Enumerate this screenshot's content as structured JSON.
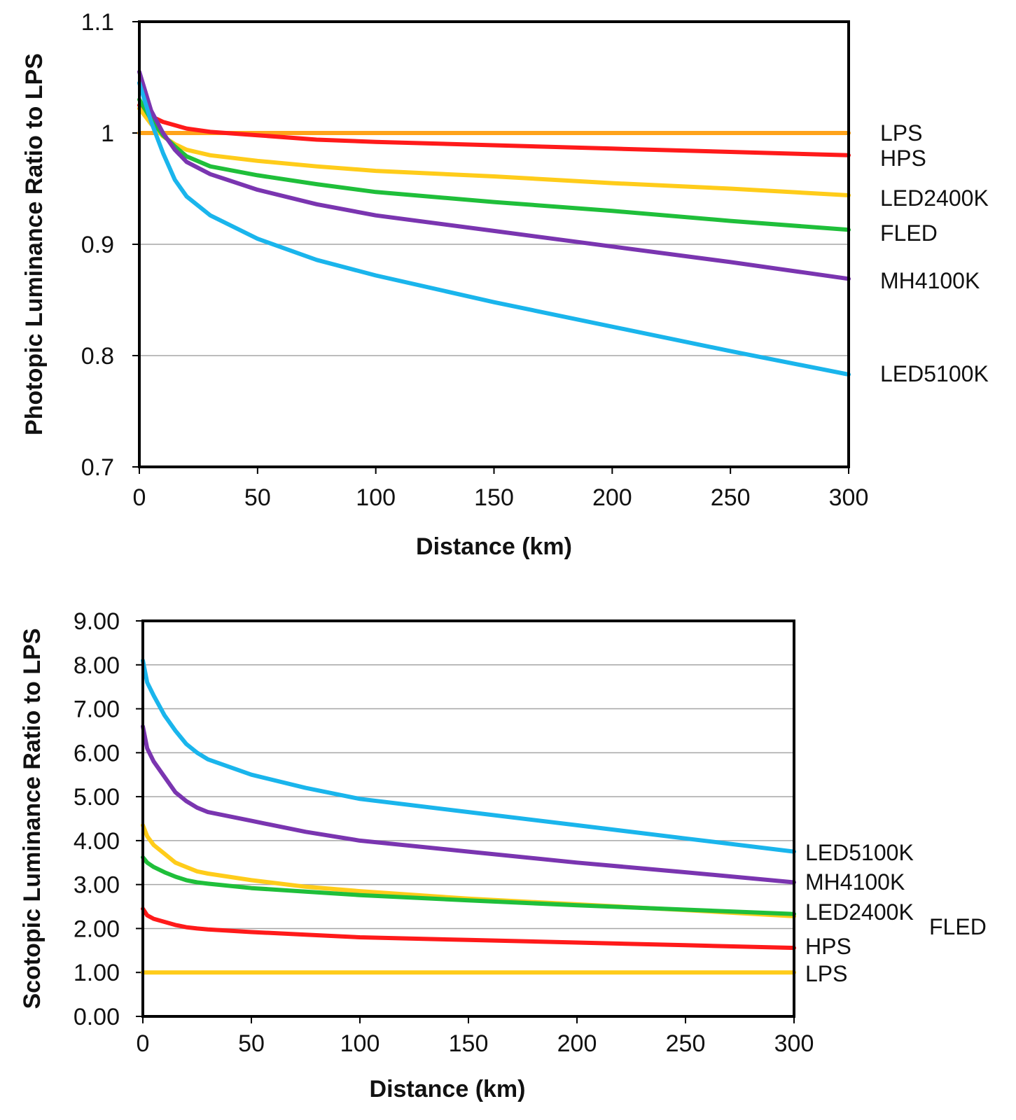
{
  "chart_data": [
    {
      "type": "line",
      "xlabel": "Distance (km)",
      "ylabel": "Photopic Luminance Ratio to LPS",
      "xlim": [
        0,
        300
      ],
      "ylim": [
        0.7,
        1.1
      ],
      "x_ticks": [
        "0",
        "50",
        "100",
        "150",
        "200",
        "250",
        "300"
      ],
      "y_ticks": [
        "0.7",
        "0.8",
        "0.9",
        "1",
        "1.1"
      ],
      "grid": "horizontal",
      "legend": "labels at line ends, right",
      "series": [
        {
          "name": "LPS",
          "color": "#ffa31a",
          "x": [
            0,
            300
          ],
          "y": [
            1.0,
            1.0
          ]
        },
        {
          "name": "HPS",
          "color": "#ff1a1a",
          "x": [
            0,
            5,
            10,
            20,
            30,
            50,
            75,
            100,
            150,
            200,
            250,
            300
          ],
          "y": [
            1.025,
            1.015,
            1.01,
            1.004,
            1.001,
            0.998,
            0.994,
            0.992,
            0.989,
            0.986,
            0.983,
            0.98
          ]
        },
        {
          "name": "LED2400K",
          "color": "#ffcc1a",
          "x": [
            0,
            5,
            10,
            15,
            20,
            30,
            50,
            75,
            100,
            150,
            200,
            250,
            300
          ],
          "y": [
            1.022,
            1.008,
            0.997,
            0.99,
            0.985,
            0.98,
            0.975,
            0.97,
            0.966,
            0.961,
            0.955,
            0.95,
            0.944
          ]
        },
        {
          "name": "FLED",
          "color": "#1fbf3a",
          "x": [
            0,
            5,
            10,
            15,
            20,
            30,
            50,
            75,
            100,
            150,
            200,
            250,
            300
          ],
          "y": [
            1.03,
            1.012,
            0.998,
            0.988,
            0.979,
            0.97,
            0.962,
            0.954,
            0.947,
            0.938,
            0.93,
            0.921,
            0.913
          ]
        },
        {
          "name": "MH4100K",
          "color": "#7a35b0",
          "x": [
            0,
            5,
            10,
            15,
            20,
            30,
            50,
            75,
            100,
            150,
            200,
            250,
            300
          ],
          "y": [
            1.055,
            1.02,
            1.0,
            0.985,
            0.974,
            0.963,
            0.949,
            0.936,
            0.926,
            0.912,
            0.898,
            0.884,
            0.869
          ]
        },
        {
          "name": "LED5100K",
          "color": "#1ab5ec",
          "x": [
            0,
            5,
            10,
            15,
            20,
            30,
            50,
            75,
            100,
            150,
            200,
            250,
            300
          ],
          "y": [
            1.045,
            1.01,
            0.982,
            0.958,
            0.943,
            0.926,
            0.905,
            0.886,
            0.872,
            0.848,
            0.826,
            0.804,
            0.783
          ]
        }
      ]
    },
    {
      "type": "line",
      "xlabel": "Distance (km)",
      "ylabel": "Scotopic Luminance Ratio to LPS",
      "xlim": [
        0,
        300
      ],
      "ylim": [
        0,
        9
      ],
      "x_ticks": [
        "0",
        "50",
        "100",
        "150",
        "200",
        "250",
        "300"
      ],
      "y_ticks": [
        "0.00",
        "1.00",
        "2.00",
        "3.00",
        "4.00",
        "5.00",
        "6.00",
        "7.00",
        "8.00",
        "9.00"
      ],
      "grid": "horizontal",
      "legend": "labels at line ends, right",
      "series": [
        {
          "name": "LED5100K",
          "color": "#1ab5ec",
          "x": [
            0,
            2,
            5,
            10,
            15,
            20,
            25,
            30,
            50,
            75,
            100,
            150,
            200,
            250,
            300
          ],
          "y": [
            8.1,
            7.6,
            7.3,
            6.85,
            6.5,
            6.2,
            6.0,
            5.85,
            5.5,
            5.2,
            4.95,
            4.65,
            4.35,
            4.05,
            3.75
          ]
        },
        {
          "name": "MH4100K",
          "color": "#7a35b0",
          "x": [
            0,
            2,
            5,
            10,
            15,
            20,
            25,
            30,
            50,
            75,
            100,
            150,
            200,
            250,
            300
          ],
          "y": [
            6.6,
            6.1,
            5.8,
            5.45,
            5.1,
            4.9,
            4.75,
            4.65,
            4.45,
            4.2,
            4.0,
            3.75,
            3.5,
            3.28,
            3.05
          ]
        },
        {
          "name": "LED2400K",
          "color": "#ffcc1a",
          "x": [
            0,
            2,
            5,
            10,
            15,
            20,
            25,
            30,
            50,
            75,
            100,
            150,
            200,
            250,
            300
          ],
          "y": [
            4.35,
            4.1,
            3.9,
            3.7,
            3.5,
            3.4,
            3.3,
            3.25,
            3.1,
            2.95,
            2.85,
            2.68,
            2.55,
            2.42,
            2.28
          ]
        },
        {
          "name": "FLED",
          "color": "#1fbf3a",
          "x": [
            0,
            2,
            5,
            10,
            15,
            20,
            25,
            30,
            50,
            75,
            100,
            150,
            200,
            250,
            300
          ],
          "y": [
            3.62,
            3.5,
            3.4,
            3.28,
            3.18,
            3.1,
            3.05,
            3.02,
            2.92,
            2.84,
            2.76,
            2.64,
            2.53,
            2.43,
            2.33
          ]
        },
        {
          "name": "HPS",
          "color": "#ff1a1a",
          "x": [
            0,
            2,
            5,
            10,
            15,
            20,
            25,
            30,
            50,
            75,
            100,
            150,
            200,
            250,
            300
          ],
          "y": [
            2.45,
            2.3,
            2.22,
            2.15,
            2.08,
            2.03,
            2.0,
            1.98,
            1.92,
            1.86,
            1.8,
            1.74,
            1.68,
            1.62,
            1.56
          ]
        },
        {
          "name": "LPS",
          "color": "#ffcc1a",
          "x": [
            0,
            300
          ],
          "y": [
            1.0,
            1.0
          ]
        }
      ]
    }
  ]
}
